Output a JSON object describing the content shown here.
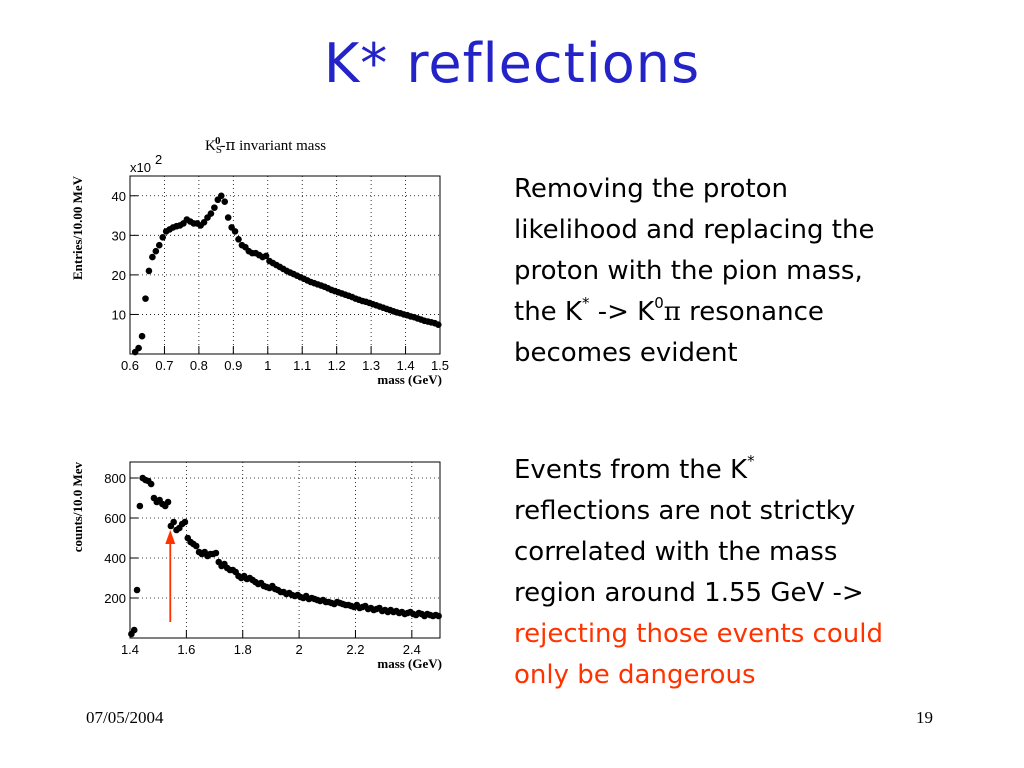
{
  "slide": {
    "title": "K* reflections",
    "footer_date": "07/05/2004",
    "footer_page": "19"
  },
  "text1": {
    "line1": "Removing the proton",
    "line2": "likelihood and replacing the",
    "line3": "proton with the pion mass,",
    "line4_a": "the K",
    "line4_sup1": "*",
    "line4_b": " -> K",
    "line4_sup2": "0",
    "line4_pi": "π",
    "line4_c": " resonance",
    "line5": "becomes evident"
  },
  "text2": {
    "line1_a": "Events from the K",
    "line1_sup": "*",
    "line2": "reflections are not strictky",
    "line3": "correlated with the mass",
    "line4": "region around 1.55 GeV ->",
    "line5_red": "rejecting those events could",
    "line6_red": "only be dangerous"
  },
  "colors": {
    "title": "#2323c8",
    "highlight": "#ff3300",
    "arrow": "#ff3300",
    "marker": "#000000"
  },
  "chart_data": [
    {
      "type": "scatter",
      "title_parts": [
        "K",
        "S",
        "0",
        "-",
        "π",
        " invariant mass"
      ],
      "xlabel": "mass (GeV)",
      "ylabel": "Entries/10.00 MeV",
      "yscale_label": "x10",
      "yscale_exp": "2",
      "xlim": [
        0.6,
        1.5
      ],
      "ylim": [
        0,
        45
      ],
      "xticks": [
        0.6,
        0.7,
        0.8,
        0.9,
        1,
        1.1,
        1.2,
        1.3,
        1.4,
        1.5
      ],
      "xtick_labels": [
        "0.6",
        "0.7",
        "0.8",
        "0.9",
        "1",
        "1.1",
        "1.2",
        "1.3",
        "1.4",
        "1.5"
      ],
      "yticks": [
        10,
        20,
        30,
        40
      ],
      "ytick_labels": [
        "10",
        "20",
        "30",
        "40"
      ],
      "grid": true,
      "x": [
        0.615,
        0.625,
        0.635,
        0.645,
        0.655,
        0.665,
        0.675,
        0.685,
        0.695,
        0.705,
        0.715,
        0.725,
        0.735,
        0.745,
        0.755,
        0.765,
        0.775,
        0.785,
        0.795,
        0.805,
        0.815,
        0.825,
        0.835,
        0.845,
        0.855,
        0.865,
        0.875,
        0.885,
        0.895,
        0.905,
        0.915,
        0.925,
        0.935,
        0.945,
        0.955,
        0.965,
        0.975,
        0.985,
        0.995,
        1.005,
        1.015,
        1.025,
        1.035,
        1.045,
        1.055,
        1.065,
        1.075,
        1.085,
        1.095,
        1.105,
        1.115,
        1.125,
        1.135,
        1.145,
        1.155,
        1.165,
        1.175,
        1.185,
        1.195,
        1.205,
        1.215,
        1.225,
        1.235,
        1.245,
        1.255,
        1.265,
        1.275,
        1.285,
        1.295,
        1.305,
        1.315,
        1.325,
        1.335,
        1.345,
        1.355,
        1.365,
        1.375,
        1.385,
        1.395,
        1.405,
        1.415,
        1.425,
        1.435,
        1.445,
        1.455,
        1.465,
        1.475,
        1.485,
        1.495
      ],
      "y": [
        0.5,
        1.5,
        4.5,
        14,
        21,
        24.5,
        26,
        27.5,
        29.5,
        31,
        31.5,
        32,
        32.3,
        32.5,
        33,
        34,
        33.5,
        33,
        33,
        32.5,
        33.3,
        34.5,
        35.5,
        37,
        39,
        40,
        38.5,
        34.5,
        32,
        31,
        29,
        27.5,
        27,
        26,
        25.5,
        25.5,
        25,
        24.5,
        24.8,
        23.5,
        23,
        22.5,
        22,
        21.5,
        21,
        20.6,
        20.2,
        19.8,
        19.4,
        19,
        18.6,
        18.2,
        17.9,
        17.6,
        17.3,
        17,
        16.6,
        16.2,
        15.9,
        15.6,
        15.3,
        15,
        14.7,
        14.4,
        14,
        13.7,
        13.4,
        13.2,
        12.9,
        12.6,
        12.3,
        12,
        11.7,
        11.4,
        11.1,
        10.8,
        10.5,
        10.3,
        10,
        9.8,
        9.5,
        9.3,
        9,
        8.7,
        8.4,
        8.2,
        8,
        7.8,
        7.4
      ]
    },
    {
      "type": "scatter",
      "xlabel": "mass (GeV)",
      "ylabel": "counts/10.0 Mev",
      "xlim": [
        1.4,
        2.5
      ],
      "ylim": [
        0,
        880
      ],
      "xticks": [
        1.4,
        1.6,
        1.8,
        2.0,
        2.2,
        2.4
      ],
      "xtick_labels": [
        "1.4",
        "1.6",
        "1.8",
        "2",
        "2.2",
        "2.4"
      ],
      "yticks": [
        200,
        400,
        600,
        800
      ],
      "ytick_labels": [
        "200",
        "400",
        "600",
        "800"
      ],
      "grid": true,
      "arrow_at_x": 1.55,
      "x": [
        1.405,
        1.415,
        1.425,
        1.435,
        1.445,
        1.455,
        1.465,
        1.475,
        1.485,
        1.495,
        1.505,
        1.515,
        1.525,
        1.535,
        1.545,
        1.555,
        1.565,
        1.575,
        1.585,
        1.595,
        1.605,
        1.615,
        1.625,
        1.635,
        1.645,
        1.655,
        1.665,
        1.675,
        1.685,
        1.695,
        1.705,
        1.715,
        1.725,
        1.735,
        1.745,
        1.755,
        1.765,
        1.775,
        1.785,
        1.795,
        1.805,
        1.815,
        1.825,
        1.835,
        1.845,
        1.855,
        1.865,
        1.875,
        1.885,
        1.895,
        1.905,
        1.915,
        1.925,
        1.935,
        1.945,
        1.955,
        1.965,
        1.975,
        1.985,
        1.995,
        2.005,
        2.015,
        2.025,
        2.035,
        2.045,
        2.055,
        2.065,
        2.075,
        2.085,
        2.095,
        2.105,
        2.115,
        2.125,
        2.135,
        2.145,
        2.155,
        2.165,
        2.175,
        2.185,
        2.195,
        2.205,
        2.215,
        2.225,
        2.235,
        2.245,
        2.255,
        2.265,
        2.275,
        2.285,
        2.295,
        2.305,
        2.315,
        2.325,
        2.335,
        2.345,
        2.355,
        2.365,
        2.375,
        2.385,
        2.395,
        2.405,
        2.415,
        2.425,
        2.435,
        2.445,
        2.455,
        2.465,
        2.475,
        2.485,
        2.495
      ],
      "y": [
        20,
        40,
        240,
        660,
        800,
        790,
        785,
        770,
        700,
        680,
        690,
        670,
        660,
        680,
        560,
        580,
        540,
        550,
        570,
        580,
        500,
        480,
        470,
        460,
        430,
        420,
        430,
        410,
        420,
        420,
        425,
        380,
        360,
        370,
        350,
        340,
        340,
        330,
        310,
        300,
        310,
        295,
        300,
        290,
        280,
        270,
        275,
        260,
        255,
        250,
        260,
        245,
        240,
        230,
        230,
        220,
        225,
        215,
        210,
        215,
        205,
        200,
        210,
        195,
        200,
        195,
        190,
        185,
        190,
        180,
        180,
        175,
        170,
        180,
        175,
        170,
        165,
        165,
        160,
        155,
        165,
        150,
        155,
        160,
        145,
        150,
        140,
        145,
        150,
        135,
        140,
        130,
        140,
        130,
        135,
        125,
        130,
        120,
        125,
        130,
        120,
        115,
        125,
        120,
        110,
        120,
        115,
        110,
        115,
        110
      ]
    }
  ]
}
